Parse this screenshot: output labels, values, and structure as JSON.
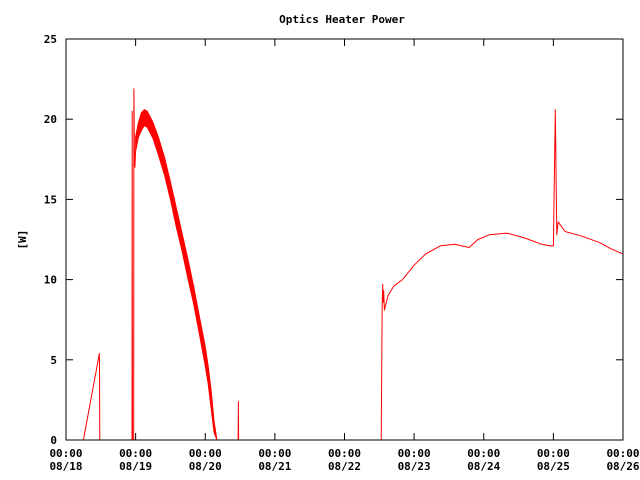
{
  "chart_data": {
    "type": "line",
    "title": "Optics Heater Power",
    "xlabel": "",
    "ylabel": "[W]",
    "ylim": [
      0,
      25
    ],
    "xlim": [
      "08/18 00:00",
      "08/26 00:00"
    ],
    "grid": false,
    "legend": "none",
    "y_ticks": [
      "0",
      "5",
      "10",
      "15",
      "20",
      "25"
    ],
    "x_ticks": [
      {
        "time": "00:00",
        "date": "08/18"
      },
      {
        "time": "00:00",
        "date": "08/19"
      },
      {
        "time": "00:00",
        "date": "08/20"
      },
      {
        "time": "00:00",
        "date": "08/21"
      },
      {
        "time": "00:00",
        "date": "08/22"
      },
      {
        "time": "00:00",
        "date": "08/23"
      },
      {
        "time": "00:00",
        "date": "08/24"
      },
      {
        "time": "00:00",
        "date": "08/25"
      },
      {
        "time": "00:00",
        "date": "08/26"
      }
    ],
    "series": [
      {
        "color": "#ff0000",
        "segments": [
          {
            "style": "line",
            "points": [
              [
                "08/18 06:00",
                0.0
              ],
              [
                "08/18 11:30",
                5.4
              ],
              [
                "08/18 11:40",
                0.0
              ]
            ]
          },
          {
            "style": "line",
            "points": [
              [
                "08/18 22:45",
                0.0
              ],
              [
                "08/18 22:50",
                20.5
              ],
              [
                "08/18 22:55",
                0.0
              ],
              [
                "08/18 23:20",
                0.0
              ],
              [
                "08/18 23:25",
                21.9
              ],
              [
                "08/18 23:35",
                18.2
              ],
              [
                "08/18 23:45",
                17.0
              ],
              [
                "08/19 00:00",
                18.0
              ]
            ]
          },
          {
            "style": "band",
            "upper": [
              [
                "08/19 00:00",
                18.9
              ],
              [
                "08/19 01:00",
                19.8
              ],
              [
                "08/19 02:00",
                20.4
              ],
              [
                "08/19 03:00",
                20.6
              ],
              [
                "08/19 04:00",
                20.5
              ],
              [
                "08/19 06:00",
                19.8
              ],
              [
                "08/19 08:00",
                18.8
              ],
              [
                "08/19 10:00",
                17.6
              ],
              [
                "08/19 12:00",
                16.1
              ],
              [
                "08/19 14:00",
                14.5
              ],
              [
                "08/19 16:00",
                12.9
              ],
              [
                "08/19 18:00",
                11.3
              ],
              [
                "08/19 20:00",
                9.6
              ],
              [
                "08/19 22:00",
                7.7
              ],
              [
                "08/20 00:00",
                5.8
              ],
              [
                "08/20 01:00",
                4.6
              ],
              [
                "08/20 02:00",
                3.1
              ],
              [
                "08/20 03:00",
                1.2
              ],
              [
                "08/20 04:00",
                0.0
              ]
            ],
            "lower": [
              [
                "08/19 00:00",
                18.0
              ],
              [
                "08/19 01:00",
                18.9
              ],
              [
                "08/19 02:00",
                19.3
              ],
              [
                "08/19 03:00",
                19.6
              ],
              [
                "08/19 04:00",
                19.5
              ],
              [
                "08/19 06:00",
                18.8
              ],
              [
                "08/19 08:00",
                17.7
              ],
              [
                "08/19 10:00",
                16.5
              ],
              [
                "08/19 12:00",
                15.0
              ],
              [
                "08/19 14:00",
                13.3
              ],
              [
                "08/19 16:00",
                11.8
              ],
              [
                "08/19 18:00",
                10.1
              ],
              [
                "08/19 20:00",
                8.5
              ],
              [
                "08/19 22:00",
                6.6
              ],
              [
                "08/20 00:00",
                4.6
              ],
              [
                "08/20 01:00",
                3.5
              ],
              [
                "08/20 02:00",
                2.0
              ],
              [
                "08/20 03:00",
                0.5
              ],
              [
                "08/20 04:00",
                0.0
              ]
            ]
          },
          {
            "style": "line",
            "points": [
              [
                "08/20 11:20",
                0.0
              ],
              [
                "08/20 11:25",
                2.4
              ],
              [
                "08/20 11:30",
                0.0
              ]
            ]
          },
          {
            "style": "line",
            "points": [
              [
                "08/22 12:40",
                0.0
              ],
              [
                "08/22 13:00",
                8.5
              ],
              [
                "08/22 13:10",
                9.7
              ],
              [
                "08/22 13:20",
                8.6
              ],
              [
                "08/22 13:30",
                9.3
              ],
              [
                "08/22 13:45",
                8.1
              ],
              [
                "08/22 15:00",
                9.0
              ],
              [
                "08/22 17:00",
                9.6
              ],
              [
                "08/22 20:00",
                10.0
              ],
              [
                "08/23 00:00",
                10.9
              ],
              [
                "08/23 04:00",
                11.6
              ],
              [
                "08/23 09:00",
                12.1
              ],
              [
                "08/23 14:00",
                12.2
              ],
              [
                "08/23 19:00",
                12.0
              ],
              [
                "08/23 22:00",
                12.5
              ],
              [
                "08/24 02:00",
                12.8
              ],
              [
                "08/24 08:00",
                12.9
              ],
              [
                "08/24 14:00",
                12.6
              ],
              [
                "08/24 20:00",
                12.2
              ],
              [
                "08/24 23:00",
                12.1
              ],
              [
                "08/25 00:00",
                12.1
              ],
              [
                "08/25 00:40",
                20.6
              ],
              [
                "08/25 01:10",
                12.8
              ],
              [
                "08/25 01:40",
                13.6
              ],
              [
                "08/25 04:00",
                13.0
              ],
              [
                "08/25 10:00",
                12.7
              ],
              [
                "08/25 16:00",
                12.3
              ],
              [
                "08/25 20:00",
                11.9
              ],
              [
                "08/26 00:00",
                11.6
              ]
            ]
          }
        ]
      }
    ]
  }
}
